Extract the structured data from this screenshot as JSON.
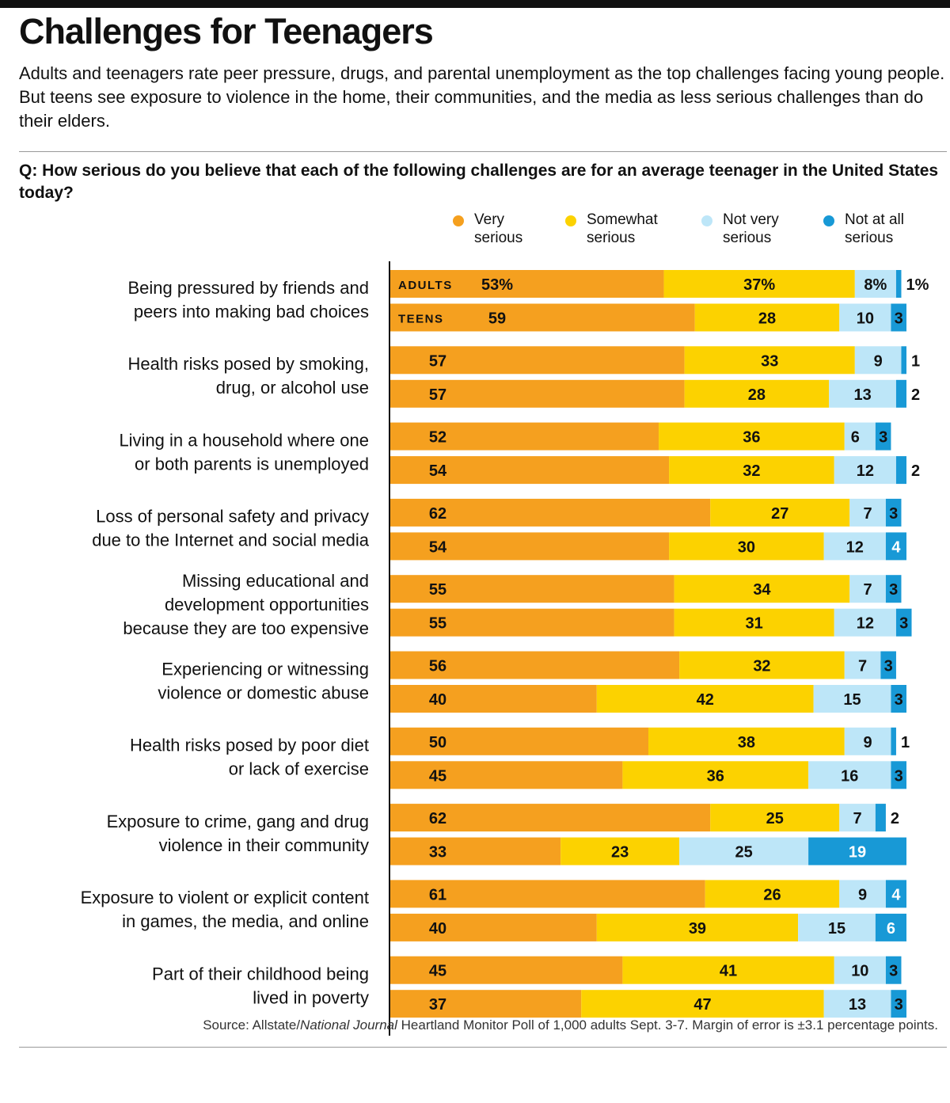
{
  "header": {
    "title": "Challenges for Teenagers",
    "subtitle": "Adults and teenagers rate peer pressure, drugs, and parental unemployment as the top challenges facing young people. But teens see exposure to violence in the home, their communities, and the media as less serious challenges than do their elders.",
    "question": "Q: How serious do you believe that each of the following challenges are for an average teenager in the United States today?"
  },
  "legend": [
    {
      "label": "Very\nserious",
      "color": "#f5a01f"
    },
    {
      "label": "Somewhat\nserious",
      "color": "#fcd200"
    },
    {
      "label": "Not very\nserious",
      "color": "#bde6f8"
    },
    {
      "label": "Not at all\nserious",
      "color": "#1899d6"
    }
  ],
  "chart_data": {
    "type": "bar",
    "stacked": true,
    "orientation": "horizontal",
    "series": [
      {
        "name": "Very serious",
        "color": "#f5a01f"
      },
      {
        "name": "Somewhat serious",
        "color": "#fcd200"
      },
      {
        "name": "Not very serious",
        "color": "#bde6f8"
      },
      {
        "name": "Not at all serious",
        "color": "#1899d6"
      }
    ],
    "row_labels": [
      "ADULTS",
      "TEENS"
    ],
    "categories": [
      {
        "label": "Being pressured by friends and\npeers into making bad choices",
        "adults": [
          53,
          37,
          8,
          1
        ],
        "teens": [
          59,
          28,
          10,
          3
        ]
      },
      {
        "label": "Health risks posed by smoking,\ndrug, or alcohol use",
        "adults": [
          57,
          33,
          9,
          1
        ],
        "teens": [
          57,
          28,
          13,
          2
        ]
      },
      {
        "label": "Living in a household where one\nor both parents is unemployed",
        "adults": [
          52,
          36,
          6,
          3
        ],
        "teens": [
          54,
          32,
          12,
          2
        ]
      },
      {
        "label": "Loss of personal safety and privacy\ndue to the Internet and social media",
        "adults": [
          62,
          27,
          7,
          3
        ],
        "teens": [
          54,
          30,
          12,
          4
        ]
      },
      {
        "label": "Missing educational and\ndevelopment opportunities\nbecause they are too expensive",
        "adults": [
          55,
          34,
          7,
          3
        ],
        "teens": [
          55,
          31,
          12,
          3
        ]
      },
      {
        "label": "Experiencing or witnessing\nviolence or domestic abuse",
        "adults": [
          56,
          32,
          7,
          3
        ],
        "teens": [
          40,
          42,
          15,
          3
        ]
      },
      {
        "label": "Health risks posed by poor diet\nor lack of exercise",
        "adults": [
          50,
          38,
          9,
          1
        ],
        "teens": [
          45,
          36,
          16,
          3
        ]
      },
      {
        "label": "Exposure to crime, gang and drug\nviolence in their community",
        "adults": [
          62,
          25,
          7,
          2
        ],
        "teens": [
          33,
          23,
          25,
          19
        ]
      },
      {
        "label": "Exposure to violent or explicit content\nin games, the media, and online",
        "adults": [
          61,
          26,
          9,
          4
        ],
        "teens": [
          40,
          39,
          15,
          6
        ]
      },
      {
        "label": "Part of their childhood being\nlived in poverty",
        "adults": [
          45,
          41,
          10,
          3
        ],
        "teens": [
          37,
          47,
          13,
          3
        ]
      }
    ]
  },
  "footer": {
    "source_prefix": "Source: Allstate/",
    "source_italic": "National Journal",
    "source_suffix": " Heartland Monitor Poll of 1,000 adults Sept. 3-7. Margin of error is ±3.1 percentage points."
  }
}
